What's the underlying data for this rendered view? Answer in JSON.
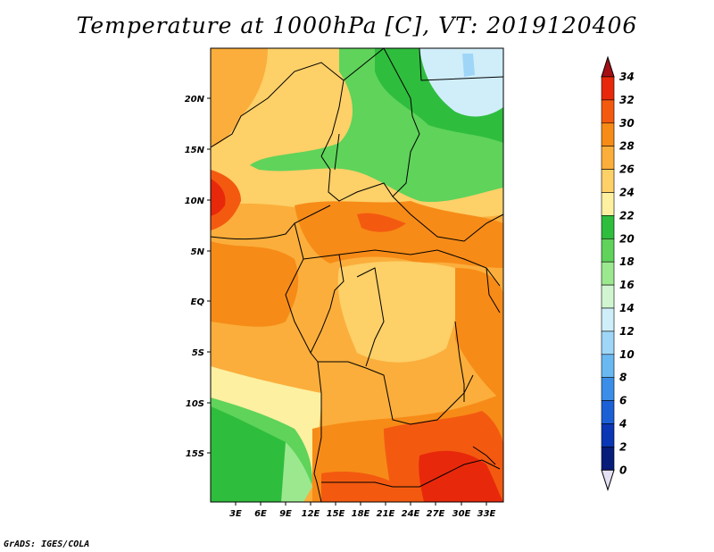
{
  "title": "Temperature at 1000hPa [C], VT: 2019120406",
  "footer": "GrADS: IGES/COLA",
  "map": {
    "lat_labels": [
      "20N",
      "15N",
      "10N",
      "5N",
      "EQ",
      "5S",
      "10S",
      "15S"
    ],
    "lon_labels": [
      "3E",
      "6E",
      "9E",
      "12E",
      "15E",
      "18E",
      "21E",
      "24E",
      "27E",
      "30E",
      "33E"
    ]
  },
  "colorbar": {
    "labels": [
      "34",
      "32",
      "30",
      "28",
      "26",
      "24",
      "22",
      "20",
      "18",
      "16",
      "14",
      "12",
      "10",
      "8",
      "6",
      "4",
      "2",
      "0"
    ],
    "colors": [
      "#a50f15",
      "#e8280b",
      "#f35a10",
      "#f78b17",
      "#fbae3b",
      "#fdd068",
      "#fdf0a0",
      "#2fbd3e",
      "#5fd35a",
      "#9ce88f",
      "#d1f5d1",
      "#cfeefa",
      "#9fd6f7",
      "#69b8f2",
      "#3a8ee8",
      "#1c60d6",
      "#0b36b4",
      "#081c7a",
      "#e6e0f5"
    ]
  }
}
